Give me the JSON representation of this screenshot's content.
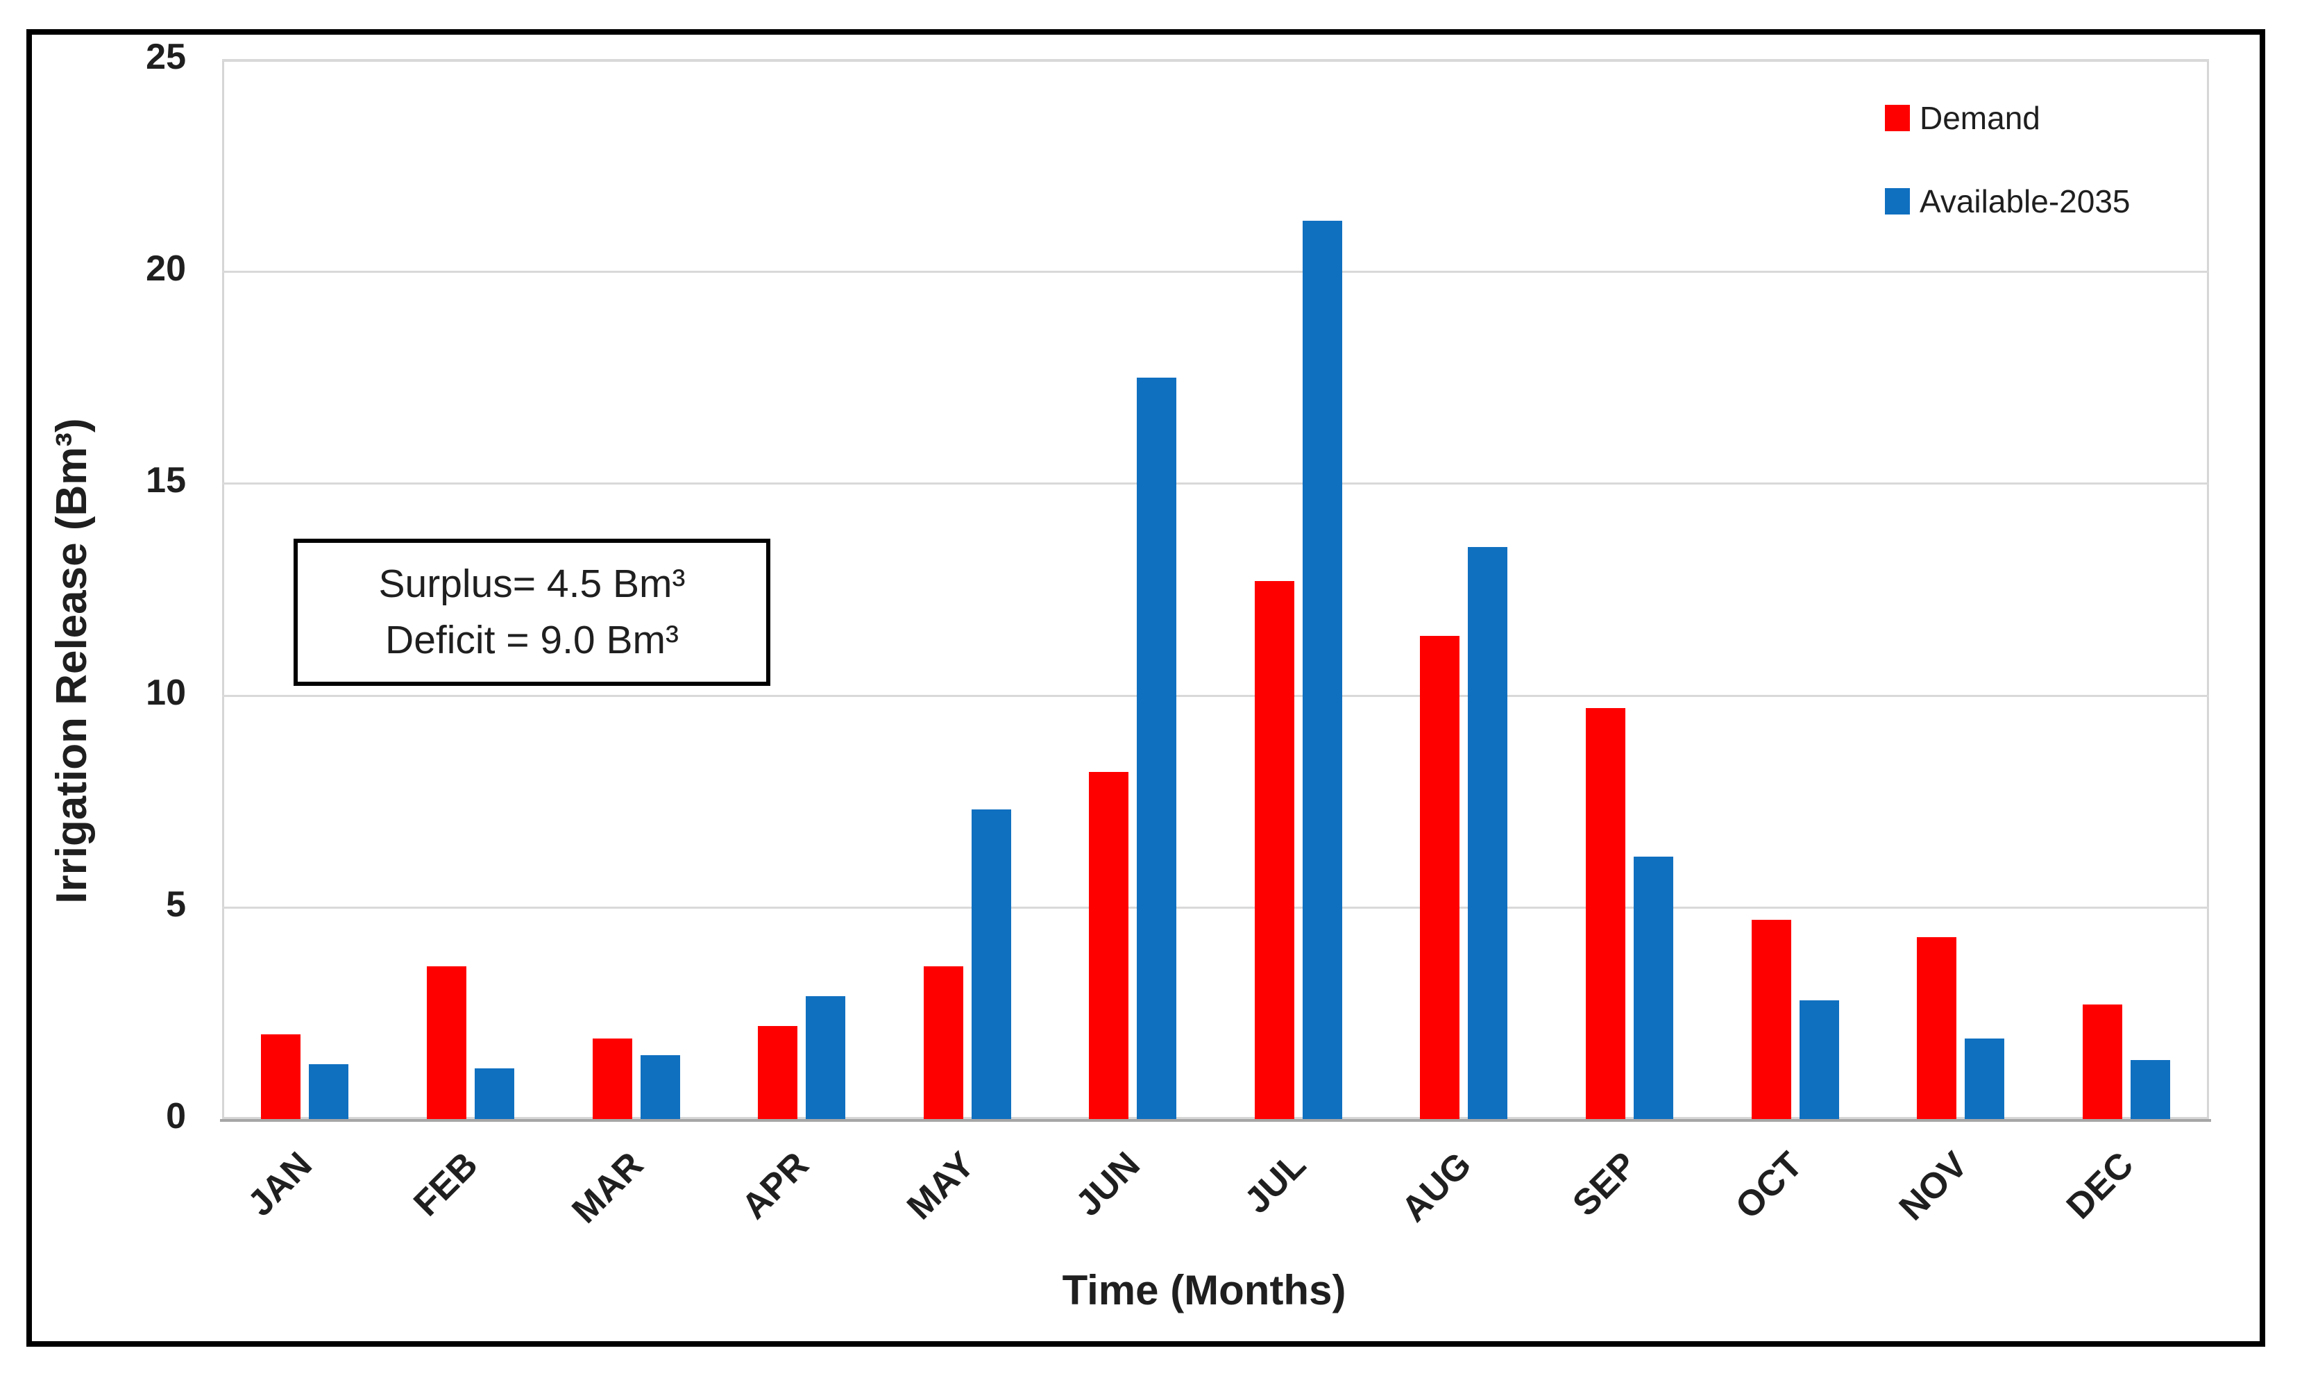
{
  "chart_data": {
    "type": "bar",
    "title": "",
    "xlabel": "Time (Months)",
    "ylabel": "Irrigation Release (Bm³)",
    "ylim": [
      0,
      25
    ],
    "yticks": [
      0,
      5,
      10,
      15,
      20,
      25
    ],
    "grid": "horizontal",
    "legend_position": "top-right-inside",
    "categories": [
      "JAN",
      "FEB",
      "MAR",
      "APR",
      "MAY",
      "JUN",
      "JUL",
      "AUG",
      "SEP",
      "OCT",
      "NOV",
      "DEC"
    ],
    "series": [
      {
        "name": "Demand",
        "color": "#FF0000",
        "values": [
          2.0,
          3.6,
          1.9,
          2.2,
          3.6,
          8.2,
          12.7,
          11.4,
          9.7,
          4.7,
          4.3,
          2.7
        ]
      },
      {
        "name": "Available-2035",
        "color": "#1070C0",
        "values": [
          1.3,
          1.2,
          1.5,
          2.9,
          7.3,
          17.5,
          21.2,
          13.5,
          6.2,
          2.8,
          1.9,
          1.4
        ]
      }
    ],
    "annotation": {
      "lines": [
        "Surplus= 4.5 Bm³",
        "Deficit = 9.0 Bm³"
      ]
    }
  },
  "colors": {
    "demand": "#FF0000",
    "available": "#1070C0",
    "gridline": "#D9D9D9",
    "axis_line": "#A6A6A6",
    "plot_border": "#D6D6D6",
    "figure_border": "#000000",
    "text": "#1F1F1F",
    "background": "#FFFFFF"
  }
}
